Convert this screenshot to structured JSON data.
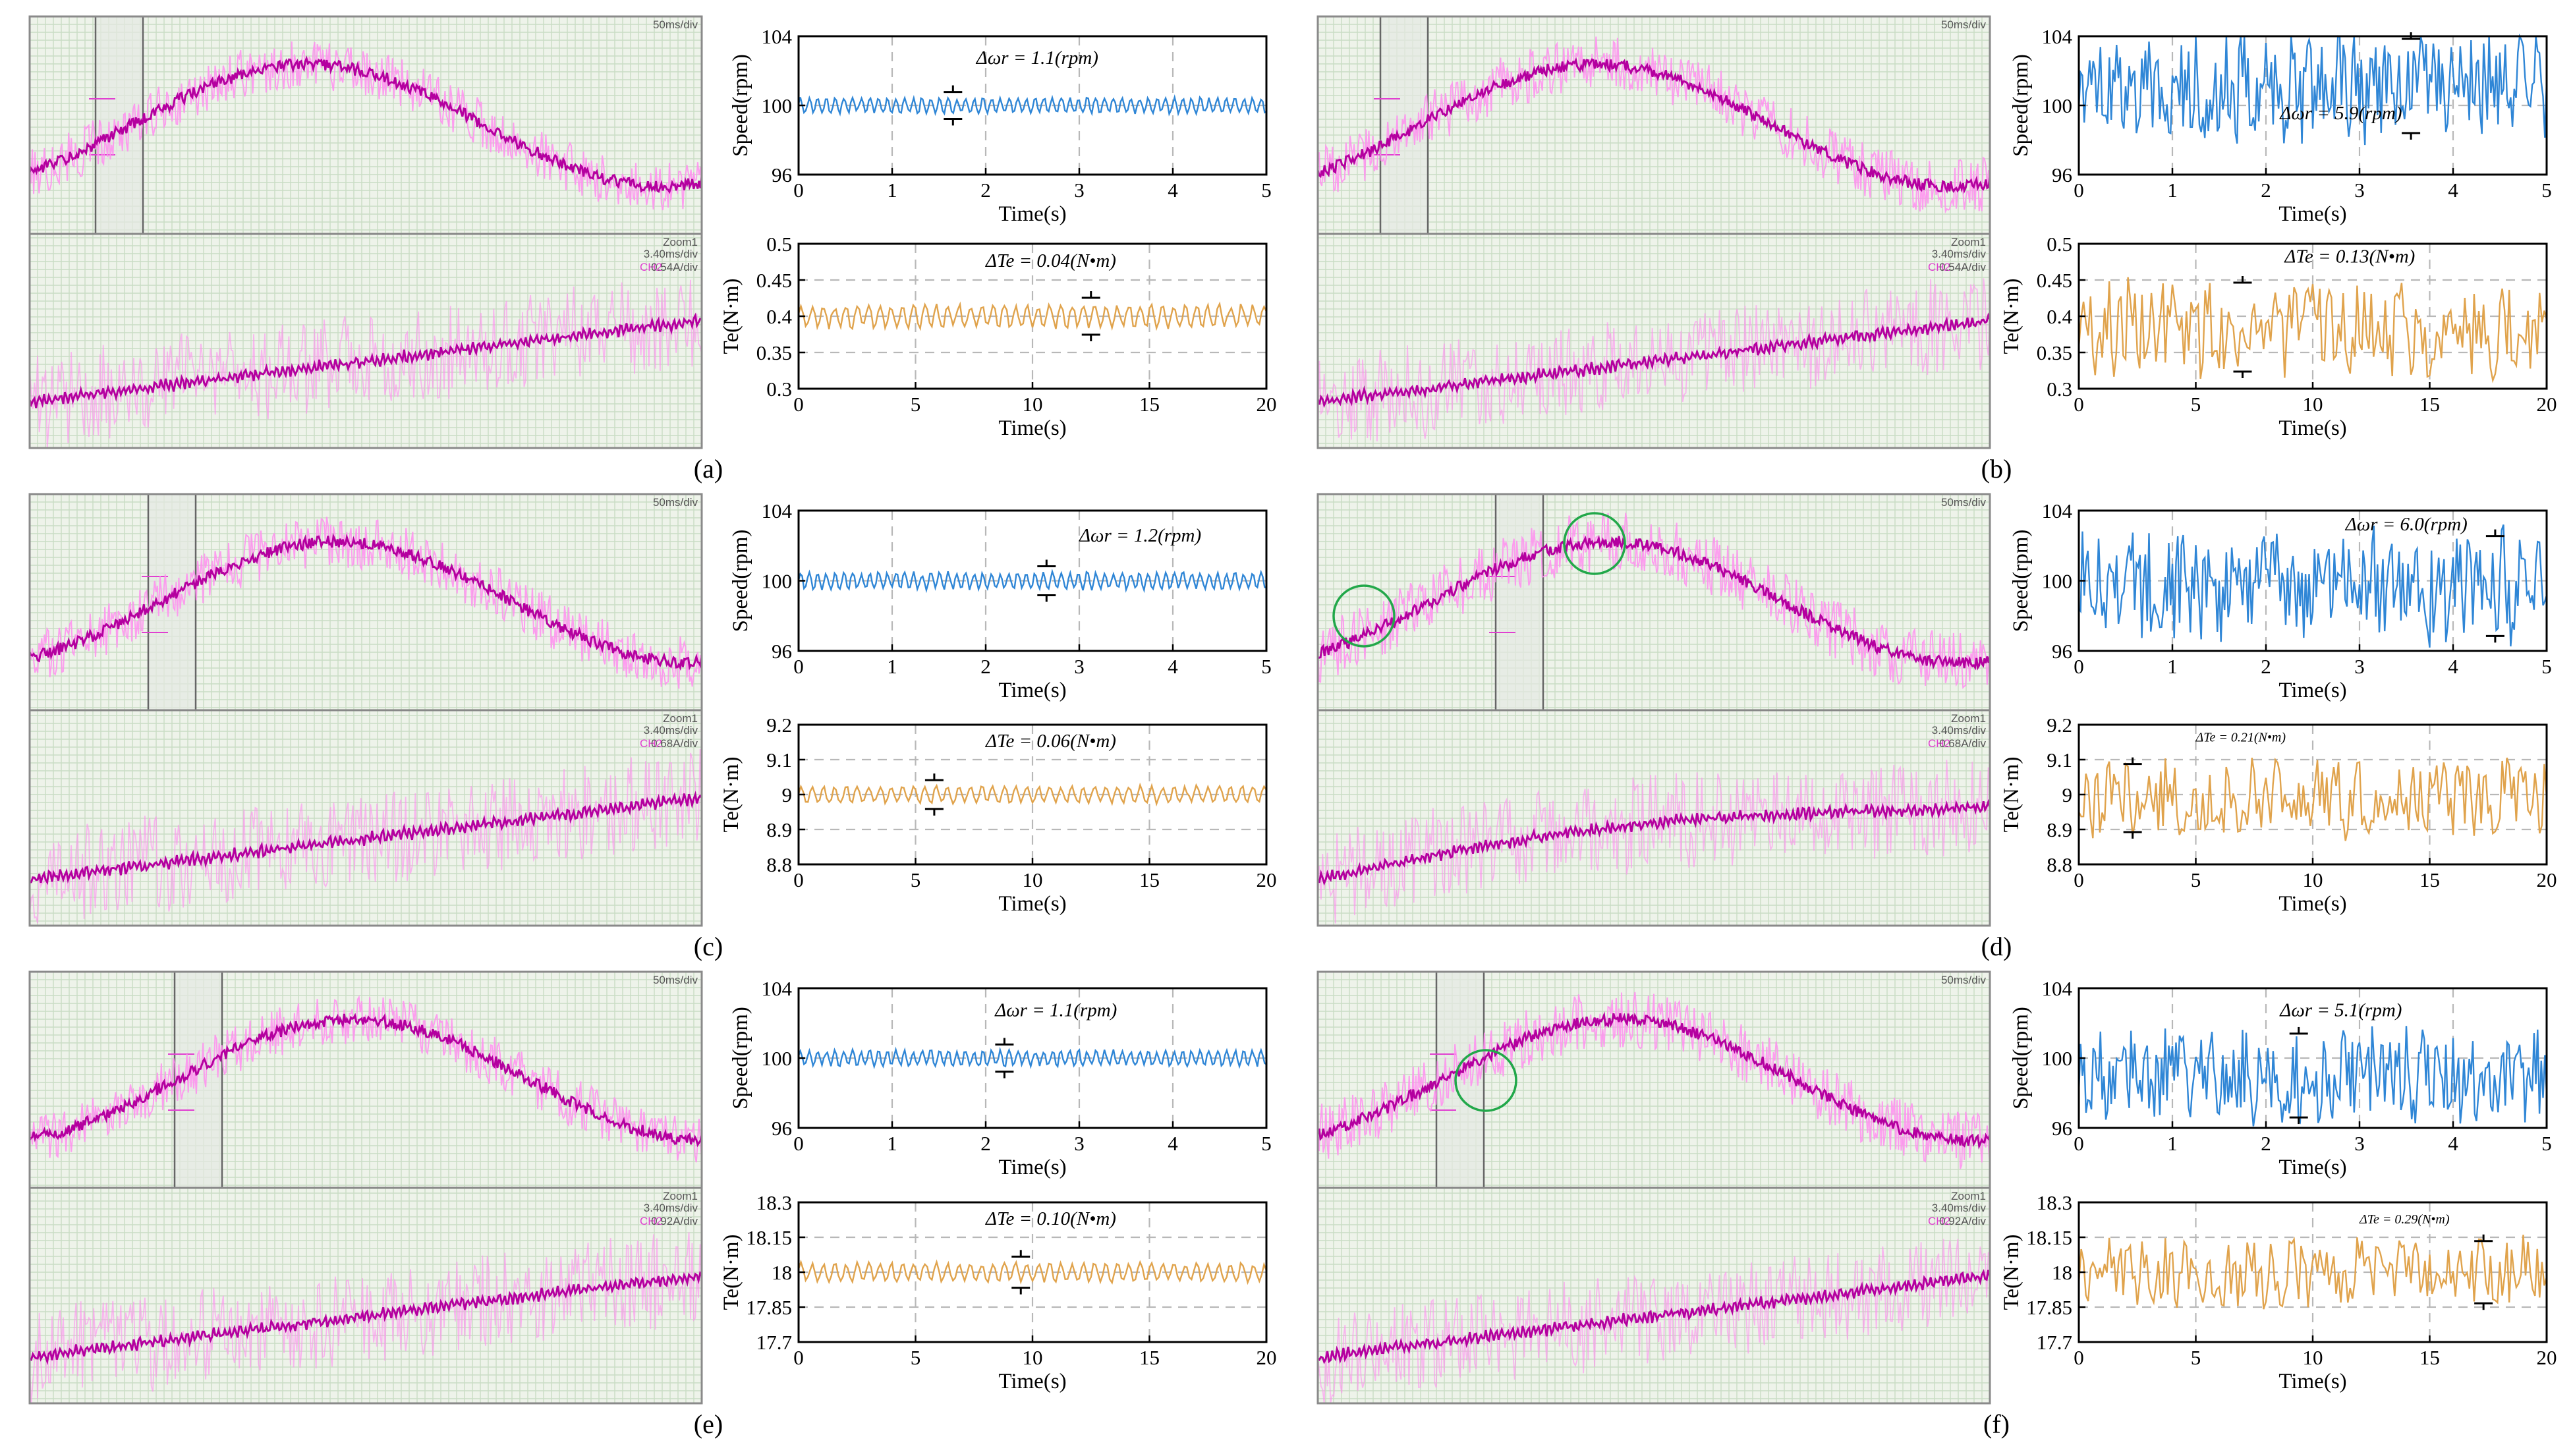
{
  "colors": {
    "speed_line": "#2f86d6",
    "torque_line": "#e0a34c",
    "scope_pink": "#ff8ef0",
    "scope_magenta": "#b4009f",
    "circle_green": "#22a84a"
  },
  "scope_labels": {
    "top_timebase": "50ms/div",
    "zoom": "Zoom1",
    "zoom_timebase": "3.40ms/div",
    "channel": "CH2"
  },
  "chart_data": [
    {
      "panel": "(a)",
      "type": "line",
      "speed": {
        "xlabel": "Time(s)",
        "ylabel": "Speed(rpm)",
        "xlim": [
          0,
          5
        ],
        "ylim": [
          96,
          104
        ],
        "xticks": [
          "0",
          "1",
          "2",
          "3",
          "4",
          "5"
        ],
        "yticks": [
          "96",
          "100",
          "104"
        ],
        "mean": 100,
        "ripple": 1.1,
        "annotation": "Δωr = 1.1(rpm)",
        "marker_t": 1.65
      },
      "torque": {
        "xlabel": "Time(s)",
        "ylabel": "Te(N·m)",
        "xlim": [
          0,
          20
        ],
        "ylim": [
          0.3,
          0.5
        ],
        "xticks": [
          "0",
          "5",
          "10",
          "15",
          "20"
        ],
        "yticks": [
          "0.3",
          "0.35",
          "0.4",
          "0.45",
          "0.5"
        ],
        "mean": 0.4,
        "ripple": 0.04,
        "annotation": "ΔTe = 0.04(N•m)",
        "marker_t": 12.5
      },
      "scope": {
        "current_scale": "0.54A/div",
        "circles": 0
      }
    },
    {
      "panel": "(b)",
      "type": "line",
      "speed": {
        "xlabel": "Time(s)",
        "ylabel": "Speed(rpm)",
        "xlim": [
          0,
          5
        ],
        "ylim": [
          96,
          104
        ],
        "xticks": [
          "0",
          "1",
          "2",
          "3",
          "4",
          "5"
        ],
        "yticks": [
          "96",
          "100",
          "104"
        ],
        "mean": 101.2,
        "ripple": 5.9,
        "annotation": "Δωr = 5.9(rpm)",
        "marker_t": 3.55
      },
      "torque": {
        "xlabel": "Time(s)",
        "ylabel": "Te(N·m)",
        "xlim": [
          0,
          20
        ],
        "ylim": [
          0.3,
          0.5
        ],
        "xticks": [
          "0",
          "5",
          "10",
          "15",
          "20"
        ],
        "yticks": [
          "0.3",
          "0.35",
          "0.4",
          "0.45",
          "0.5"
        ],
        "mean": 0.385,
        "ripple": 0.13,
        "annotation": "ΔTe = 0.13(N•m)",
        "marker_t": 7.0
      },
      "scope": {
        "current_scale": "0.54A/div",
        "circles": 0
      }
    },
    {
      "panel": "(c)",
      "type": "line",
      "speed": {
        "xlabel": "Time(s)",
        "ylabel": "Speed(rpm)",
        "xlim": [
          0,
          5
        ],
        "ylim": [
          96,
          104
        ],
        "xticks": [
          "0",
          "1",
          "2",
          "3",
          "4",
          "5"
        ],
        "yticks": [
          "96",
          "100",
          "104"
        ],
        "mean": 100,
        "ripple": 1.2,
        "annotation": "Δωr = 1.2(rpm)",
        "marker_t": 2.65
      },
      "torque": {
        "xlabel": "Time(s)",
        "ylabel": "Te(N·m)",
        "xlim": [
          0,
          20
        ],
        "ylim": [
          8.8,
          9.2
        ],
        "xticks": [
          "0",
          "5",
          "10",
          "15",
          "20"
        ],
        "yticks": [
          "8.8",
          "8.9",
          "9",
          "9.1",
          "9.2"
        ],
        "mean": 9.0,
        "ripple": 0.06,
        "annotation": "ΔTe = 0.06(N•m)",
        "marker_t": 5.8
      },
      "scope": {
        "current_scale": "0.68A/div",
        "circles": 0
      }
    },
    {
      "panel": "(d)",
      "type": "line",
      "speed": {
        "xlabel": "Time(s)",
        "ylabel": "Speed(rpm)",
        "xlim": [
          0,
          5
        ],
        "ylim": [
          96,
          104
        ],
        "xticks": [
          "0",
          "1",
          "2",
          "3",
          "4",
          "5"
        ],
        "yticks": [
          "96",
          "100",
          "104"
        ],
        "mean": 99.7,
        "ripple": 6.0,
        "annotation": "Δωr = 6.0(rpm)",
        "marker_t": 4.45
      },
      "torque": {
        "xlabel": "Time(s)",
        "ylabel": "Te(N·m)",
        "xlim": [
          0,
          20
        ],
        "ylim": [
          8.8,
          9.2
        ],
        "xticks": [
          "0",
          "5",
          "10",
          "15",
          "20"
        ],
        "yticks": [
          "8.8",
          "8.9",
          "9",
          "9.1",
          "9.2"
        ],
        "mean": 8.99,
        "ripple": 0.21,
        "annotation": "ΔTe = 0.21(N•m)",
        "marker_t": 2.3
      },
      "scope": {
        "current_scale": "0.68A/div",
        "circles": 2
      }
    },
    {
      "panel": "(e)",
      "type": "line",
      "speed": {
        "xlabel": "Time(s)",
        "ylabel": "Speed(rpm)",
        "xlim": [
          0,
          5
        ],
        "ylim": [
          96,
          104
        ],
        "xticks": [
          "0",
          "1",
          "2",
          "3",
          "4",
          "5"
        ],
        "yticks": [
          "96",
          "100",
          "104"
        ],
        "mean": 100,
        "ripple": 1.1,
        "annotation": "Δωr = 1.1(rpm)",
        "marker_t": 2.2
      },
      "torque": {
        "xlabel": "Time(s)",
        "ylabel": "Te(N·m)",
        "xlim": [
          0,
          20
        ],
        "ylim": [
          17.7,
          18.3
        ],
        "xticks": [
          "0",
          "5",
          "10",
          "15",
          "20"
        ],
        "yticks": [
          "17.7",
          "17.85",
          "18",
          "18.15",
          "18.3"
        ],
        "mean": 18.0,
        "ripple": 0.1,
        "annotation": "ΔTe = 0.10(N•m)",
        "marker_t": 9.5
      },
      "scope": {
        "current_scale": "0.92A/div",
        "circles": 0
      }
    },
    {
      "panel": "(f)",
      "type": "line",
      "speed": {
        "xlabel": "Time(s)",
        "ylabel": "Speed(rpm)",
        "xlim": [
          0,
          5
        ],
        "ylim": [
          96,
          104
        ],
        "xticks": [
          "0",
          "1",
          "2",
          "3",
          "4",
          "5"
        ],
        "yticks": [
          "96",
          "100",
          "104"
        ],
        "mean": 99.0,
        "ripple": 5.1,
        "annotation": "Δωr = 5.1(rpm)",
        "marker_t": 2.35
      },
      "torque": {
        "xlabel": "Time(s)",
        "ylabel": "Te(N·m)",
        "xlim": [
          0,
          20
        ],
        "ylim": [
          17.7,
          18.3
        ],
        "xticks": [
          "0",
          "5",
          "10",
          "15",
          "20"
        ],
        "yticks": [
          "17.7",
          "17.85",
          "18",
          "18.15",
          "18.3"
        ],
        "mean": 18.0,
        "ripple": 0.29,
        "annotation": "ΔTe = 0.29(N•m)",
        "marker_t": 17.3
      },
      "scope": {
        "current_scale": "0.92A/div",
        "circles": 1
      }
    }
  ]
}
